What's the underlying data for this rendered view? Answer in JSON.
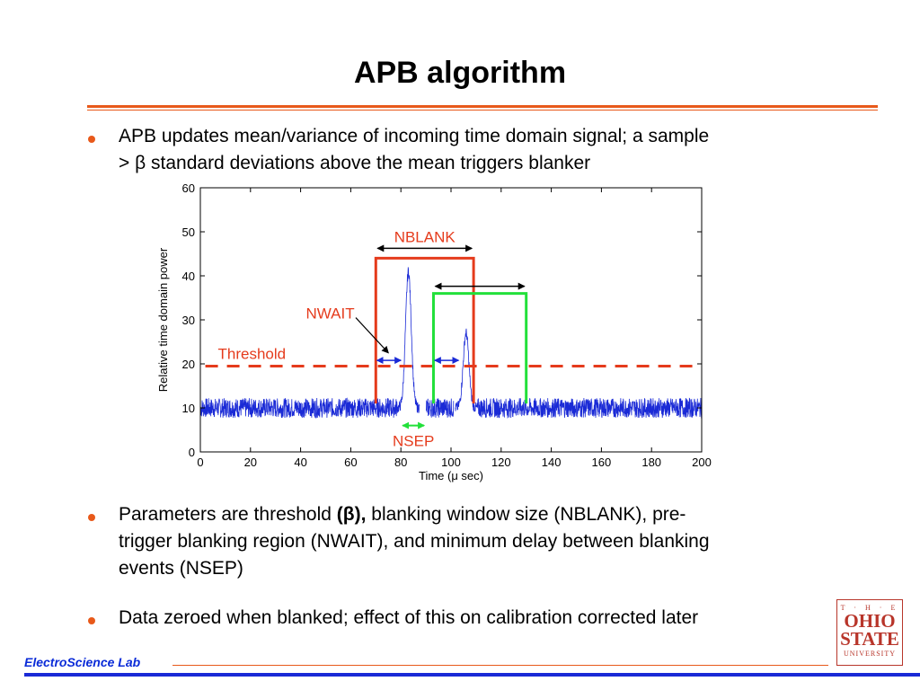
{
  "slide": {
    "title": "APB algorithm",
    "bullets": [
      {
        "line1": "APB updates mean/variance of incoming time domain signal; a sample",
        "line2": "> β standard deviations above the mean triggers blanker"
      },
      {
        "pre": "Parameters are threshold ",
        "beta": "(β),",
        "post": " blanking window size (NBLANK), pre-",
        "line2": "trigger blanking region (NWAIT), and minimum delay between blanking",
        "line3": "events (NSEP)"
      },
      {
        "line1": "Data zeroed when blanked; effect of this on calibration corrected later"
      }
    ],
    "footer": "ElectroScience Lab",
    "logo": {
      "the": "T · H · E",
      "line1": "OHIO",
      "line2": "STATE",
      "line3": "UNIVERSITY"
    }
  },
  "colors": {
    "accent": "#e8591a",
    "footer_blue": "#1a2ad6",
    "signal": "#1a2ad6",
    "nblank": "#e53b1c",
    "nsep": "#22e03a",
    "threshold": "#e53b1c"
  },
  "chart_data": {
    "type": "line",
    "xlabel": "Time (μ sec)",
    "ylabel": "Relative time domain power",
    "xlim": [
      0,
      200
    ],
    "ylim": [
      0,
      60
    ],
    "xticks": [
      "0",
      "20",
      "40",
      "60",
      "80",
      "100",
      "120",
      "140",
      "160",
      "180",
      "200"
    ],
    "yticks": [
      "0",
      "10",
      "20",
      "30",
      "40",
      "50",
      "60"
    ],
    "noise_baseline": 10,
    "pulses": [
      {
        "center": 83,
        "peak": 41
      },
      {
        "center": 106,
        "peak": 27
      }
    ],
    "zeroed_segments": [
      [
        80,
        90
      ],
      [
        101,
        109
      ]
    ],
    "threshold": {
      "value": 19.5,
      "label": "Threshold"
    },
    "annotations": {
      "nblank": {
        "label": "NBLANK",
        "x_start": 70,
        "x_end": 109,
        "top": 44
      },
      "window2": {
        "x_start": 93,
        "x_end": 130,
        "top": 36
      },
      "nwait": {
        "label": "NWAIT"
      },
      "nsep": {
        "label": "NSEP",
        "x_start": 80,
        "x_end": 90
      }
    }
  }
}
